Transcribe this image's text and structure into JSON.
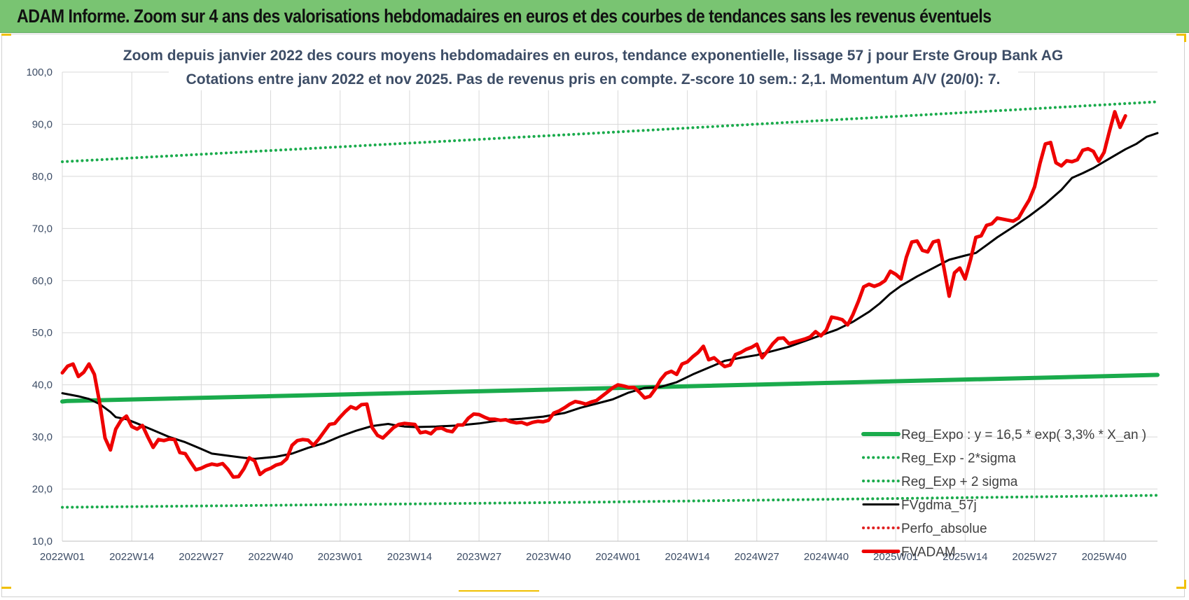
{
  "header": {
    "title": "ADAM Informe. Zoom sur 4 ans des valorisations hebdomadaires en euros et des courbes de tendances sans les revenus éventuels"
  },
  "colors": {
    "banner": "#79c472",
    "reg_green": "#1aab4c",
    "sigma_green": "#1aab4c",
    "smooth_black": "#000000",
    "perfo_red": "#e02020",
    "fvadam_red": "#ee0000",
    "grid": "#d9d9d9",
    "text": "#3d4d66"
  },
  "chart_data": {
    "type": "line",
    "title": "Zoom depuis janvier 2022 des cours moyens hebdomadaires en euros, tendance exponentielle, lissage 57 j pour Erste Group Bank AG",
    "subtitle": "Cotations entre janv 2022 et nov 2025. Pas de revenus pris en compte. Z-score 10 sem.: 2,1. Momentum A/V (20/0): 7.",
    "xlabel": "",
    "ylabel": "",
    "ylim": [
      10,
      100
    ],
    "yticks": [
      "10,0",
      "20,0",
      "30,0",
      "40,0",
      "50,0",
      "60,0",
      "70,0",
      "80,0",
      "90,0",
      "100,0"
    ],
    "x_tick_labels": [
      "2022W01",
      "2022W14",
      "2022W27",
      "2022W40",
      "2023W01",
      "2023W14",
      "2023W27",
      "2023W40",
      "2024W01",
      "2024W14",
      "2024W27",
      "2024W40",
      "2025W01",
      "2025W14",
      "2025W27",
      "2025W40"
    ],
    "x_tick_index": [
      0,
      13,
      26,
      39,
      52,
      65,
      78,
      91,
      104,
      117,
      130,
      143,
      156,
      169,
      182,
      195
    ],
    "n_weeks": 206,
    "grid": true,
    "legend_position": "bottom-right",
    "legend": [
      "Reg_Expo : y = 16,5 * exp( 3,3% *  X_an )",
      "Reg_Exp - 2*sigma",
      "Reg_Exp + 2 sigma",
      "FVgdma_57j",
      "Perfo_absolue",
      "FVADAM"
    ],
    "series": [
      {
        "name": "Reg_Expo : y = 16,5 * exp( 3,3% *  X_an )",
        "style": "solid-thick",
        "color": "#1aab4c",
        "points": [
          [
            0,
            36.8
          ],
          [
            1,
            36.9
          ],
          [
            100,
            39.3
          ],
          [
            205,
            41.9
          ]
        ]
      },
      {
        "name": "Reg_Exp - 2*sigma",
        "style": "dotted",
        "color": "#1aab4c",
        "points": [
          [
            0,
            16.5
          ],
          [
            100,
            17.5
          ],
          [
            205,
            18.8
          ]
        ]
      },
      {
        "name": "Reg_Exp + 2 sigma",
        "style": "dotted",
        "color": "#1aab4c",
        "points": [
          [
            0,
            82.8
          ],
          [
            100,
            88.3
          ],
          [
            205,
            94.3
          ]
        ]
      },
      {
        "name": "FVgdma_57j",
        "style": "solid",
        "color": "#000000",
        "points": [
          [
            0,
            38.4
          ],
          [
            3,
            37.8
          ],
          [
            5,
            37.3
          ],
          [
            7,
            36.3
          ],
          [
            9,
            34.8
          ],
          [
            10,
            33.8
          ],
          [
            12,
            33.4
          ],
          [
            14,
            32.6
          ],
          [
            17,
            31.3
          ],
          [
            20,
            30.0
          ],
          [
            23,
            29.0
          ],
          [
            26,
            27.7
          ],
          [
            28,
            26.8
          ],
          [
            31,
            26.4
          ],
          [
            34,
            26.0
          ],
          [
            36,
            25.8
          ],
          [
            38,
            26.0
          ],
          [
            40,
            26.2
          ],
          [
            43,
            26.8
          ],
          [
            46,
            27.9
          ],
          [
            49,
            28.8
          ],
          [
            52,
            30.1
          ],
          [
            55,
            31.2
          ],
          [
            58,
            32.1
          ],
          [
            61,
            32.5
          ],
          [
            62,
            32.3
          ],
          [
            64,
            32.0
          ],
          [
            66,
            31.9
          ],
          [
            70,
            32.0
          ],
          [
            74,
            32.2
          ],
          [
            78,
            32.6
          ],
          [
            82,
            33.2
          ],
          [
            86,
            33.5
          ],
          [
            90,
            33.9
          ],
          [
            94,
            34.6
          ],
          [
            97,
            35.6
          ],
          [
            100,
            36.4
          ],
          [
            103,
            37.2
          ],
          [
            106,
            38.5
          ],
          [
            109,
            39.4
          ],
          [
            112,
            39.6
          ],
          [
            115,
            40.5
          ],
          [
            118,
            42.0
          ],
          [
            121,
            43.3
          ],
          [
            124,
            44.6
          ],
          [
            127,
            45.2
          ],
          [
            130,
            45.7
          ],
          [
            133,
            46.5
          ],
          [
            136,
            47.3
          ],
          [
            139,
            48.4
          ],
          [
            142,
            49.5
          ],
          [
            145,
            50.6
          ],
          [
            148,
            52.1
          ],
          [
            151,
            54.0
          ],
          [
            153,
            55.6
          ],
          [
            155,
            57.5
          ],
          [
            157,
            59.0
          ],
          [
            160,
            60.8
          ],
          [
            163,
            62.4
          ],
          [
            166,
            64.0
          ],
          [
            169,
            64.8
          ],
          [
            171,
            65.3
          ],
          [
            173,
            66.8
          ],
          [
            175,
            68.3
          ],
          [
            178,
            70.3
          ],
          [
            181,
            72.4
          ],
          [
            184,
            74.7
          ],
          [
            187,
            77.4
          ],
          [
            189,
            79.7
          ],
          [
            191,
            80.6
          ],
          [
            193,
            81.6
          ],
          [
            196,
            83.4
          ],
          [
            199,
            85.2
          ],
          [
            201,
            86.2
          ],
          [
            203,
            87.6
          ],
          [
            205,
            88.3
          ]
        ]
      },
      {
        "name": "Perfo_absolue",
        "style": "dotted",
        "color": "#e02020",
        "points": []
      },
      {
        "name": "FVADAM",
        "style": "solid-thick",
        "color": "#ee0000",
        "points": [
          [
            0,
            42.3
          ],
          [
            1,
            43.6
          ],
          [
            2,
            44.0
          ],
          [
            3,
            41.6
          ],
          [
            4,
            42.4
          ],
          [
            5,
            44.0
          ],
          [
            6,
            42.0
          ],
          [
            7,
            36.5
          ],
          [
            8,
            29.8
          ],
          [
            9,
            27.5
          ],
          [
            10,
            31.5
          ],
          [
            11,
            33.2
          ],
          [
            12,
            34.0
          ],
          [
            13,
            32.0
          ],
          [
            14,
            31.5
          ],
          [
            15,
            32.2
          ],
          [
            16,
            30.0
          ],
          [
            17,
            28.0
          ],
          [
            18,
            29.5
          ],
          [
            19,
            29.3
          ],
          [
            20,
            29.6
          ],
          [
            21,
            29.5
          ],
          [
            22,
            27.0
          ],
          [
            23,
            26.8
          ],
          [
            24,
            25.2
          ],
          [
            25,
            23.7
          ],
          [
            26,
            24.0
          ],
          [
            27,
            24.5
          ],
          [
            28,
            24.8
          ],
          [
            29,
            24.6
          ],
          [
            30,
            24.9
          ],
          [
            31,
            23.8
          ],
          [
            32,
            22.3
          ],
          [
            33,
            22.4
          ],
          [
            34,
            23.9
          ],
          [
            35,
            26.0
          ],
          [
            36,
            25.4
          ],
          [
            37,
            22.8
          ],
          [
            38,
            23.6
          ],
          [
            39,
            24.0
          ],
          [
            40,
            24.6
          ],
          [
            41,
            24.9
          ],
          [
            42,
            25.8
          ],
          [
            43,
            28.4
          ],
          [
            44,
            29.3
          ],
          [
            45,
            29.5
          ],
          [
            46,
            29.4
          ],
          [
            47,
            28.4
          ],
          [
            48,
            29.6
          ],
          [
            49,
            31.0
          ],
          [
            50,
            32.4
          ],
          [
            51,
            32.6
          ],
          [
            52,
            33.8
          ],
          [
            53,
            34.9
          ],
          [
            54,
            35.8
          ],
          [
            55,
            35.4
          ],
          [
            56,
            36.2
          ],
          [
            57,
            36.3
          ],
          [
            58,
            31.8
          ],
          [
            59,
            30.3
          ],
          [
            60,
            29.8
          ],
          [
            61,
            30.8
          ],
          [
            62,
            31.8
          ],
          [
            63,
            32.4
          ],
          [
            64,
            32.6
          ],
          [
            65,
            32.5
          ],
          [
            66,
            32.4
          ],
          [
            67,
            30.8
          ],
          [
            68,
            31.0
          ],
          [
            69,
            30.6
          ],
          [
            70,
            31.6
          ],
          [
            71,
            31.7
          ],
          [
            72,
            31.2
          ],
          [
            73,
            31.0
          ],
          [
            74,
            32.3
          ],
          [
            75,
            32.3
          ],
          [
            76,
            33.6
          ],
          [
            77,
            34.4
          ],
          [
            78,
            34.3
          ],
          [
            79,
            33.8
          ],
          [
            80,
            33.4
          ],
          [
            81,
            33.4
          ],
          [
            82,
            33.2
          ],
          [
            83,
            33.3
          ],
          [
            84,
            32.9
          ],
          [
            85,
            32.7
          ],
          [
            86,
            32.8
          ],
          [
            87,
            32.4
          ],
          [
            88,
            32.8
          ],
          [
            89,
            33.0
          ],
          [
            90,
            32.9
          ],
          [
            91,
            33.2
          ],
          [
            92,
            34.6
          ],
          [
            93,
            35.0
          ],
          [
            94,
            35.6
          ],
          [
            95,
            36.3
          ],
          [
            96,
            36.8
          ],
          [
            97,
            36.6
          ],
          [
            98,
            36.3
          ],
          [
            99,
            36.7
          ],
          [
            100,
            37.0
          ],
          [
            101,
            37.8
          ],
          [
            102,
            38.6
          ],
          [
            103,
            39.4
          ],
          [
            104,
            40.0
          ],
          [
            105,
            39.8
          ],
          [
            106,
            39.5
          ],
          [
            107,
            39.5
          ],
          [
            108,
            38.6
          ],
          [
            109,
            37.5
          ],
          [
            110,
            37.8
          ],
          [
            111,
            39.2
          ],
          [
            112,
            41.0
          ],
          [
            113,
            42.2
          ],
          [
            114,
            42.6
          ],
          [
            115,
            42.0
          ],
          [
            116,
            44.0
          ],
          [
            117,
            44.4
          ],
          [
            118,
            45.4
          ],
          [
            119,
            46.2
          ],
          [
            120,
            47.4
          ],
          [
            121,
            44.8
          ],
          [
            122,
            45.2
          ],
          [
            123,
            44.3
          ],
          [
            124,
            43.5
          ],
          [
            125,
            43.8
          ],
          [
            126,
            45.8
          ],
          [
            127,
            46.2
          ],
          [
            128,
            46.8
          ],
          [
            129,
            47.2
          ],
          [
            130,
            47.8
          ],
          [
            131,
            45.2
          ],
          [
            132,
            46.5
          ],
          [
            133,
            47.9
          ],
          [
            134,
            48.9
          ],
          [
            135,
            49.0
          ],
          [
            136,
            47.9
          ],
          [
            137,
            48.2
          ],
          [
            138,
            48.5
          ],
          [
            139,
            48.8
          ],
          [
            140,
            49.2
          ],
          [
            141,
            50.2
          ],
          [
            142,
            49.4
          ],
          [
            143,
            50.5
          ],
          [
            144,
            53.0
          ],
          [
            145,
            52.8
          ],
          [
            146,
            52.5
          ],
          [
            147,
            51.5
          ],
          [
            148,
            53.5
          ],
          [
            149,
            56.0
          ],
          [
            150,
            58.8
          ],
          [
            151,
            59.3
          ],
          [
            152,
            58.9
          ],
          [
            153,
            59.3
          ],
          [
            154,
            60.0
          ],
          [
            155,
            61.8
          ],
          [
            156,
            61.2
          ],
          [
            157,
            60.3
          ],
          [
            158,
            64.5
          ],
          [
            159,
            67.4
          ],
          [
            160,
            67.6
          ],
          [
            161,
            65.8
          ],
          [
            162,
            65.5
          ],
          [
            163,
            67.4
          ],
          [
            164,
            67.7
          ],
          [
            165,
            62.6
          ],
          [
            166,
            57.0
          ],
          [
            167,
            61.5
          ],
          [
            168,
            62.4
          ],
          [
            169,
            60.3
          ],
          [
            170,
            64.0
          ],
          [
            171,
            68.3
          ],
          [
            172,
            68.6
          ],
          [
            173,
            70.6
          ],
          [
            174,
            70.9
          ],
          [
            175,
            72.0
          ],
          [
            176,
            71.8
          ],
          [
            177,
            71.6
          ],
          [
            178,
            71.4
          ],
          [
            179,
            72.0
          ],
          [
            180,
            73.8
          ],
          [
            181,
            75.5
          ],
          [
            182,
            78.0
          ],
          [
            183,
            82.5
          ],
          [
            184,
            86.2
          ],
          [
            185,
            86.5
          ],
          [
            186,
            82.6
          ],
          [
            187,
            82.0
          ],
          [
            188,
            83.0
          ],
          [
            189,
            82.8
          ],
          [
            190,
            83.2
          ],
          [
            191,
            85.0
          ],
          [
            192,
            85.3
          ],
          [
            193,
            84.8
          ],
          [
            194,
            82.9
          ],
          [
            195,
            84.6
          ],
          [
            196,
            88.6
          ],
          [
            197,
            92.4
          ],
          [
            198,
            89.4
          ],
          [
            199,
            91.6
          ]
        ]
      }
    ]
  }
}
